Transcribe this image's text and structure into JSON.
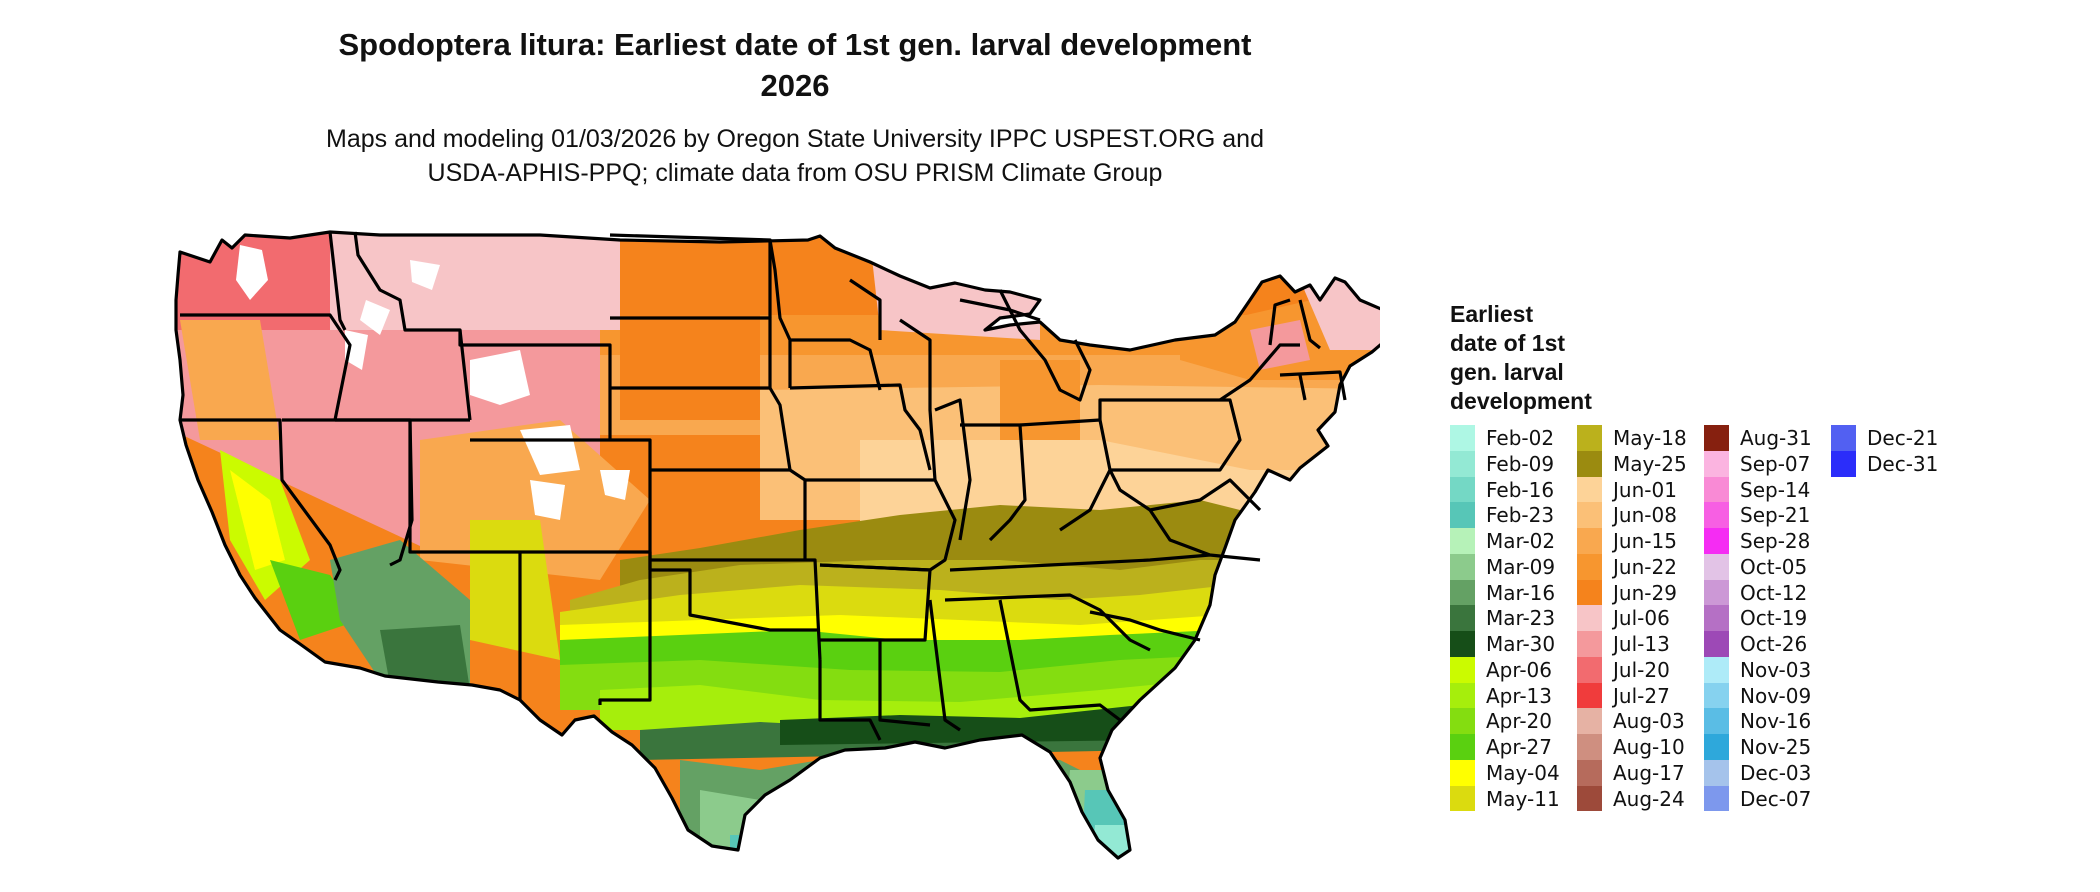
{
  "title_line1": "Spodoptera litura: Earliest date of 1st gen. larval development",
  "title_line2": "2026",
  "subtitle_line1": "Maps and modeling 01/03/2026 by Oregon State University IPPC USPEST.ORG and",
  "subtitle_line2": "USDA-APHIS-PPQ; climate data from OSU PRISM Climate Group",
  "legend": {
    "title_line1": "Earliest",
    "title_line2": "date of 1st",
    "title_line3": "gen. larval",
    "title_line4": "development",
    "items": [
      {
        "label": "Feb-02",
        "color": "#aef7e4"
      },
      {
        "label": "Feb-09",
        "color": "#93e9d4"
      },
      {
        "label": "Feb-16",
        "color": "#74d8c5"
      },
      {
        "label": "Feb-23",
        "color": "#57c6b7"
      },
      {
        "label": "Mar-02",
        "color": "#b6f2b8"
      },
      {
        "label": "Mar-09",
        "color": "#8ccb8c"
      },
      {
        "label": "Mar-16",
        "color": "#64a164"
      },
      {
        "label": "Mar-23",
        "color": "#3a753d"
      },
      {
        "label": "Mar-30",
        "color": "#164e18"
      },
      {
        "label": "Apr-06",
        "color": "#cbfb00"
      },
      {
        "label": "Apr-13",
        "color": "#a6ee0c"
      },
      {
        "label": "Apr-20",
        "color": "#84dd10"
      },
      {
        "label": "Apr-27",
        "color": "#5ad010"
      },
      {
        "label": "May-04",
        "color": "#ffff00"
      },
      {
        "label": "May-11",
        "color": "#dbdb0f"
      },
      {
        "label": "May-18",
        "color": "#bbb11c"
      },
      {
        "label": "May-25",
        "color": "#9b8b10"
      },
      {
        "label": "Jun-01",
        "color": "#fdd398"
      },
      {
        "label": "Jun-08",
        "color": "#fbc077"
      },
      {
        "label": "Jun-15",
        "color": "#f9a84f"
      },
      {
        "label": "Jun-22",
        "color": "#f7962f"
      },
      {
        "label": "Jun-29",
        "color": "#f5831c"
      },
      {
        "label": "Jul-06",
        "color": "#f7c5c7"
      },
      {
        "label": "Jul-13",
        "color": "#f4999c"
      },
      {
        "label": "Jul-20",
        "color": "#f26b6f"
      },
      {
        "label": "Jul-27",
        "color": "#f03c3c"
      },
      {
        "label": "Aug-03",
        "color": "#e6b2a4"
      },
      {
        "label": "Aug-10",
        "color": "#cf8f80"
      },
      {
        "label": "Aug-17",
        "color": "#b66b5c"
      },
      {
        "label": "Aug-24",
        "color": "#9d4a3a"
      },
      {
        "label": "Aug-31",
        "color": "#86200f"
      },
      {
        "label": "Sep-07",
        "color": "#fbb4e0"
      },
      {
        "label": "Sep-14",
        "color": "#f98ad5"
      },
      {
        "label": "Sep-21",
        "color": "#f75fe3"
      },
      {
        "label": "Sep-28",
        "color": "#f52cf3"
      },
      {
        "label": "Oct-05",
        "color": "#e2c3e6"
      },
      {
        "label": "Oct-12",
        "color": "#cc98d6"
      },
      {
        "label": "Oct-19",
        "color": "#b570c5"
      },
      {
        "label": "Oct-26",
        "color": "#9d49b6"
      },
      {
        "label": "Nov-03",
        "color": "#aeebf8"
      },
      {
        "label": "Nov-09",
        "color": "#86d2ef"
      },
      {
        "label": "Nov-16",
        "color": "#5abde5"
      },
      {
        "label": "Nov-25",
        "color": "#2ea8db"
      },
      {
        "label": "Dec-03",
        "color": "#a5c3eb"
      },
      {
        "label": "Dec-07",
        "color": "#7d98ed"
      },
      {
        "label": "Dec-21",
        "color": "#5260f2"
      },
      {
        "label": "Dec-31",
        "color": "#2b2dfa"
      }
    ]
  }
}
